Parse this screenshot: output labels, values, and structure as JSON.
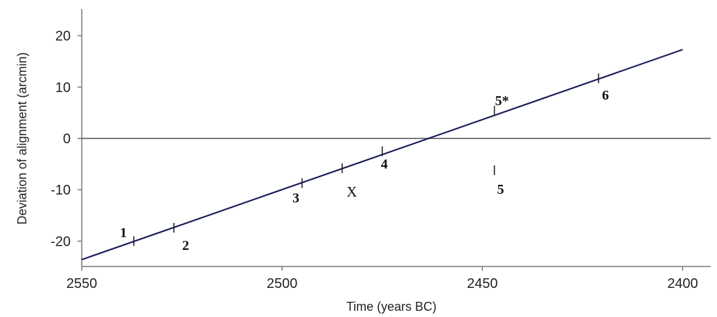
{
  "chart_data": {
    "type": "scatter",
    "xlabel": "Time (years BC)",
    "ylabel": "Deviation of alignment (arcmin)",
    "xlim": [
      2550,
      2390
    ],
    "ylim": [
      -25,
      25
    ],
    "x_reversed": true,
    "x_ticks": [
      {
        "value": 2550,
        "label": "2550"
      },
      {
        "value": 2500,
        "label": "2500"
      },
      {
        "value": 2450,
        "label": "2450"
      },
      {
        "value": 2400,
        "label": "2400"
      }
    ],
    "y_ticks": [
      {
        "value": 20,
        "label": "20"
      },
      {
        "value": 10,
        "label": "10"
      },
      {
        "value": 0,
        "label": "0"
      },
      {
        "value": -10,
        "label": "-10"
      },
      {
        "value": -20,
        "label": "-20"
      }
    ],
    "fit_line": {
      "x": [
        2550,
        2400
      ],
      "y": [
        -23.6,
        17.3
      ]
    },
    "zero_line": 0,
    "points": [
      {
        "label": "1",
        "x": 2537,
        "y": -20.0,
        "style": "bold"
      },
      {
        "label": "2",
        "x": 2527,
        "y": -17.4,
        "style": "bold"
      },
      {
        "label": "3",
        "x": 2495,
        "y": -8.7,
        "style": "bold"
      },
      {
        "label": "X",
        "x": 2485,
        "y": -5.8,
        "style": "serif"
      },
      {
        "label": "4",
        "x": 2475,
        "y": -2.5,
        "style": "bold"
      },
      {
        "label": "5*",
        "x": 2447,
        "y": 5.4,
        "style": "bold"
      },
      {
        "label": "5",
        "x": 2447,
        "y": -6.2,
        "style": "bold"
      },
      {
        "label": "6",
        "x": 2421,
        "y": 11.7,
        "style": "bold"
      }
    ],
    "grid": false
  },
  "colors": {
    "axis": "#777777",
    "fit_line": "#1a1f5a",
    "zero_line": "#7a7a7a",
    "text": "#222222"
  }
}
